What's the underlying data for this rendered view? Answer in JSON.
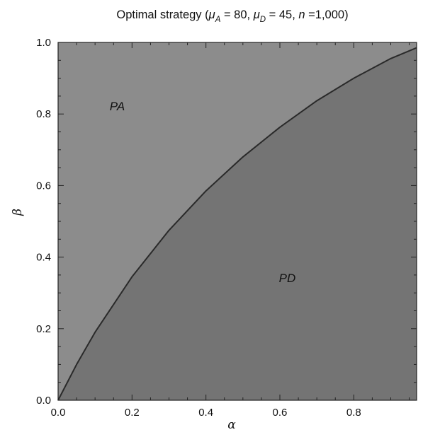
{
  "chart_data": {
    "type": "area",
    "title": {
      "prefix": "Optimal strategy (",
      "mu_symbol": "μ",
      "mu_a_sub": "A",
      "mu_a_value": " = 80, ",
      "mu_d_sub": "D",
      "mu_d_value": " = 45, ",
      "n_symbol": "n",
      "n_value": " =1,000)"
    },
    "xlabel": "α",
    "ylabel": "β",
    "xlim": [
      0,
      0.97
    ],
    "ylim": [
      0,
      1.0
    ],
    "xticks": [
      0.0,
      0.2,
      0.4,
      0.6,
      0.8
    ],
    "xtick_labels": [
      "0.0",
      "0.2",
      "0.4",
      "0.6",
      "0.8"
    ],
    "yticks": [
      0.0,
      0.2,
      0.4,
      0.6,
      0.8,
      1.0
    ],
    "ytick_labels": [
      "0.0",
      "0.2",
      "0.4",
      "0.6",
      "0.8",
      "1.0"
    ],
    "regions": [
      {
        "label": "PA",
        "color": "#8c8c8c",
        "x": 0.16,
        "y": 0.81
      },
      {
        "label": "PD",
        "color": "#747474",
        "x": 0.62,
        "y": 0.33
      }
    ],
    "boundary": {
      "color": "#2a2a2a",
      "points": [
        [
          0.0,
          0.0
        ],
        [
          0.05,
          0.1
        ],
        [
          0.1,
          0.19
        ],
        [
          0.2,
          0.345
        ],
        [
          0.3,
          0.475
        ],
        [
          0.4,
          0.585
        ],
        [
          0.5,
          0.68
        ],
        [
          0.6,
          0.763
        ],
        [
          0.7,
          0.837
        ],
        [
          0.8,
          0.9
        ],
        [
          0.9,
          0.955
        ],
        [
          0.97,
          0.985
        ]
      ]
    },
    "grid": false
  }
}
